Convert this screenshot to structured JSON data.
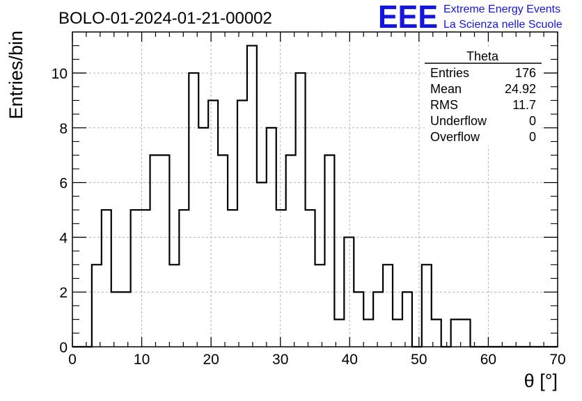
{
  "chart_data": {
    "type": "histogram",
    "title": "BOLO-01-2024-01-21-00002",
    "xlabel": "θ [°]",
    "ylabel": "Entries/bin",
    "xlim": [
      0,
      70
    ],
    "ylim": [
      0,
      11.5
    ],
    "grid": true,
    "x_ticks": [
      "0",
      "10",
      "20",
      "30",
      "40",
      "50",
      "60",
      "70"
    ],
    "y_ticks": [
      "0",
      "2",
      "4",
      "6",
      "8",
      "10"
    ],
    "bin_width": 1.4,
    "bin_edges_start": 0,
    "values": [
      0,
      0,
      3,
      5,
      2,
      2,
      5,
      5,
      7,
      7,
      3,
      5,
      10,
      8,
      9,
      7,
      5,
      9,
      11,
      6,
      8,
      5,
      7,
      10,
      5,
      3,
      7,
      1,
      4,
      2,
      1,
      2,
      3,
      1,
      2,
      0,
      3,
      1,
      0,
      1,
      1,
      0,
      0,
      0,
      0,
      0,
      0,
      0,
      0,
      0
    ],
    "stats_box": {
      "title": "Theta",
      "rows": [
        {
          "label": "Entries",
          "value": "176"
        },
        {
          "label": "Mean",
          "value": "24.92"
        },
        {
          "label": "RMS",
          "value": "11.7"
        },
        {
          "label": "Underflow",
          "value": "0"
        },
        {
          "label": "Overflow",
          "value": "0"
        }
      ]
    },
    "logo": {
      "text": "EEE",
      "line1": "Extreme Energy Events",
      "line2": "La Scienza nelle Scuole",
      "color": "#1515e0"
    },
    "colors": {
      "line": "#000000",
      "grid": "#b0b0b0"
    }
  }
}
